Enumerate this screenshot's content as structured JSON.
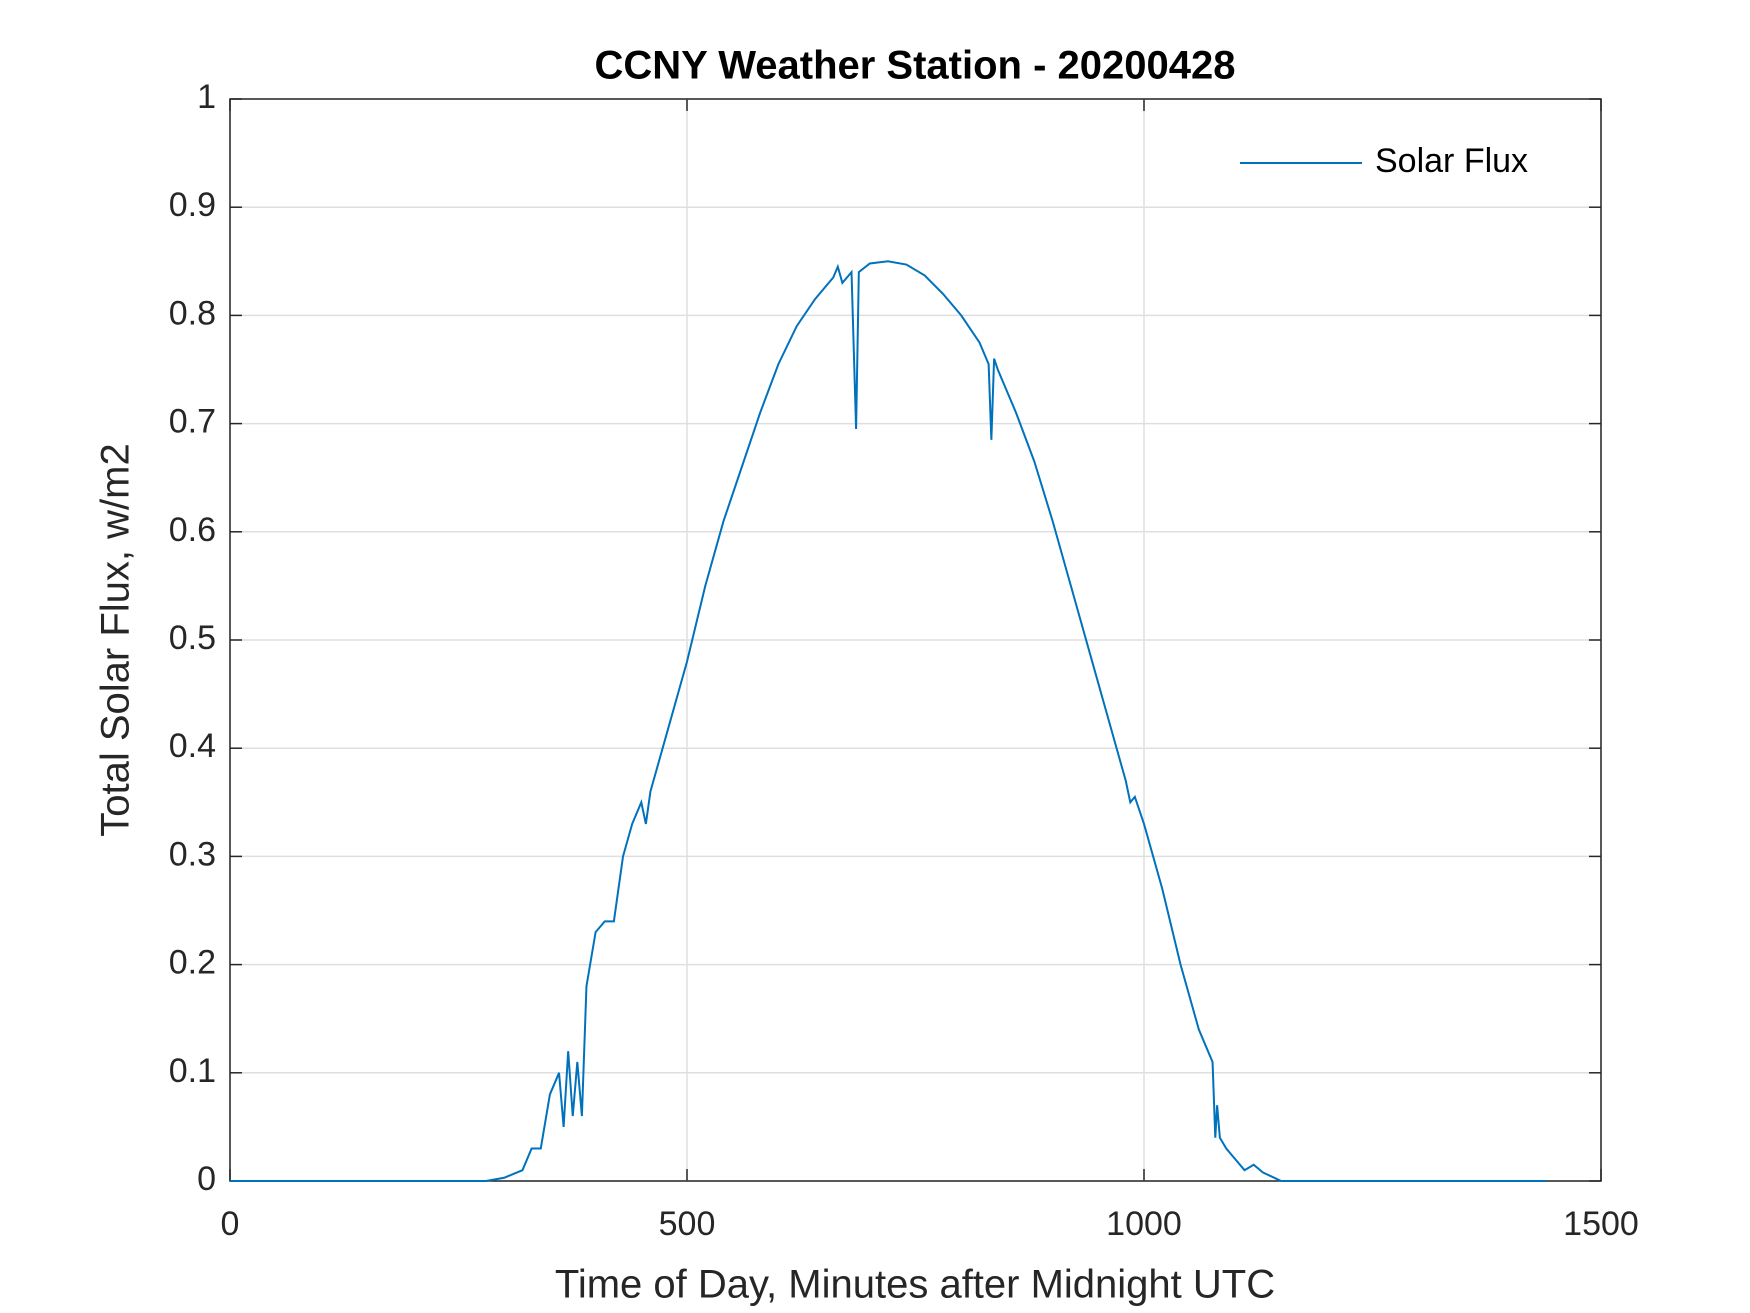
{
  "chart_data": {
    "type": "line",
    "title": "CCNY Weather Station - 20200428",
    "xlabel": "Time of Day, Minutes after Midnight UTC",
    "ylabel": "Total Solar Flux, w/m2",
    "xlim": [
      0,
      1500
    ],
    "xticks": [
      0,
      500,
      1000,
      1500
    ],
    "ylim": [
      0,
      1
    ],
    "yticks": [
      0,
      0.1,
      0.2,
      0.3,
      0.4,
      0.5,
      0.6,
      0.7,
      0.8,
      0.9,
      1
    ],
    "grid": true,
    "legend": "top-right",
    "series": [
      {
        "name": "Solar Flux",
        "color": "#0072bd",
        "x": [
          0,
          280,
          300,
          320,
          330,
          340,
          350,
          360,
          365,
          370,
          375,
          380,
          385,
          390,
          400,
          410,
          420,
          430,
          440,
          450,
          455,
          460,
          480,
          500,
          520,
          540,
          560,
          580,
          600,
          620,
          640,
          660,
          665,
          670,
          680,
          685,
          688,
          700,
          720,
          740,
          760,
          780,
          800,
          820,
          830,
          833,
          836,
          840,
          860,
          880,
          900,
          920,
          940,
          960,
          980,
          985,
          990,
          1000,
          1020,
          1040,
          1060,
          1075,
          1078,
          1080,
          1083,
          1090,
          1100,
          1110,
          1120,
          1130,
          1150,
          1440
        ],
        "values": [
          0,
          0,
          0.003,
          0.01,
          0.03,
          0.03,
          0.08,
          0.1,
          0.05,
          0.12,
          0.06,
          0.11,
          0.06,
          0.18,
          0.23,
          0.24,
          0.24,
          0.3,
          0.33,
          0.35,
          0.33,
          0.36,
          0.42,
          0.48,
          0.55,
          0.61,
          0.66,
          0.71,
          0.755,
          0.79,
          0.815,
          0.835,
          0.845,
          0.83,
          0.84,
          0.695,
          0.84,
          0.848,
          0.85,
          0.847,
          0.837,
          0.82,
          0.8,
          0.775,
          0.755,
          0.685,
          0.76,
          0.75,
          0.71,
          0.665,
          0.61,
          0.55,
          0.49,
          0.43,
          0.37,
          0.35,
          0.355,
          0.33,
          0.27,
          0.2,
          0.14,
          0.11,
          0.04,
          0.07,
          0.04,
          0.03,
          0.02,
          0.01,
          0.015,
          0.008,
          0,
          0
        ]
      }
    ]
  }
}
